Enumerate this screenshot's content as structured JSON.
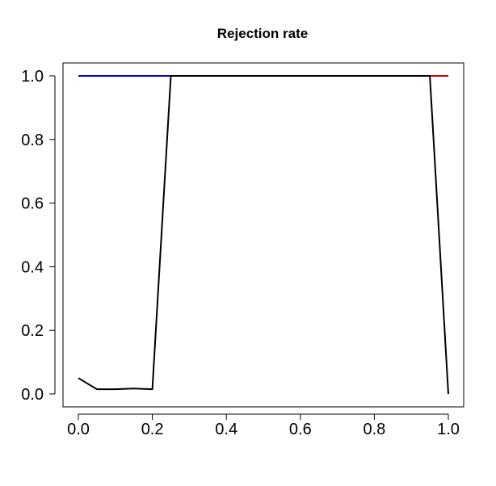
{
  "chart_data": {
    "type": "line",
    "title": "Rejection rate",
    "xlabel": "",
    "ylabel": "",
    "xlim": [
      0.0,
      1.0
    ],
    "ylim": [
      0.0,
      1.0
    ],
    "x_ticks": [
      "0.0",
      "0.2",
      "0.4",
      "0.6",
      "0.8",
      "1.0"
    ],
    "y_ticks": [
      "0.0",
      "0.2",
      "0.4",
      "0.6",
      "0.8",
      "1.0"
    ],
    "grid": false,
    "legend": "none",
    "series": [
      {
        "color": "#0000cc",
        "x": [
          0.0,
          0.05,
          0.1,
          0.15,
          0.2,
          0.25
        ],
        "y": [
          1.0,
          1.0,
          1.0,
          1.0,
          1.0,
          1.0
        ]
      },
      {
        "color": "#cc0000",
        "x": [
          0.95,
          1.0
        ],
        "y": [
          1.0,
          1.0
        ]
      },
      {
        "color": "#000000",
        "x": [
          0.0,
          0.05,
          0.1,
          0.15,
          0.2,
          0.25,
          0.3,
          0.35,
          0.4,
          0.45,
          0.5,
          0.55,
          0.6,
          0.65,
          0.7,
          0.75,
          0.8,
          0.85,
          0.9,
          0.95,
          1.0
        ],
        "y": [
          0.05,
          0.015,
          0.015,
          0.017,
          0.015,
          1.0,
          1.0,
          1.0,
          1.0,
          1.0,
          1.0,
          1.0,
          1.0,
          1.0,
          1.0,
          1.0,
          1.0,
          1.0,
          1.0,
          1.0,
          0.0
        ]
      }
    ]
  }
}
